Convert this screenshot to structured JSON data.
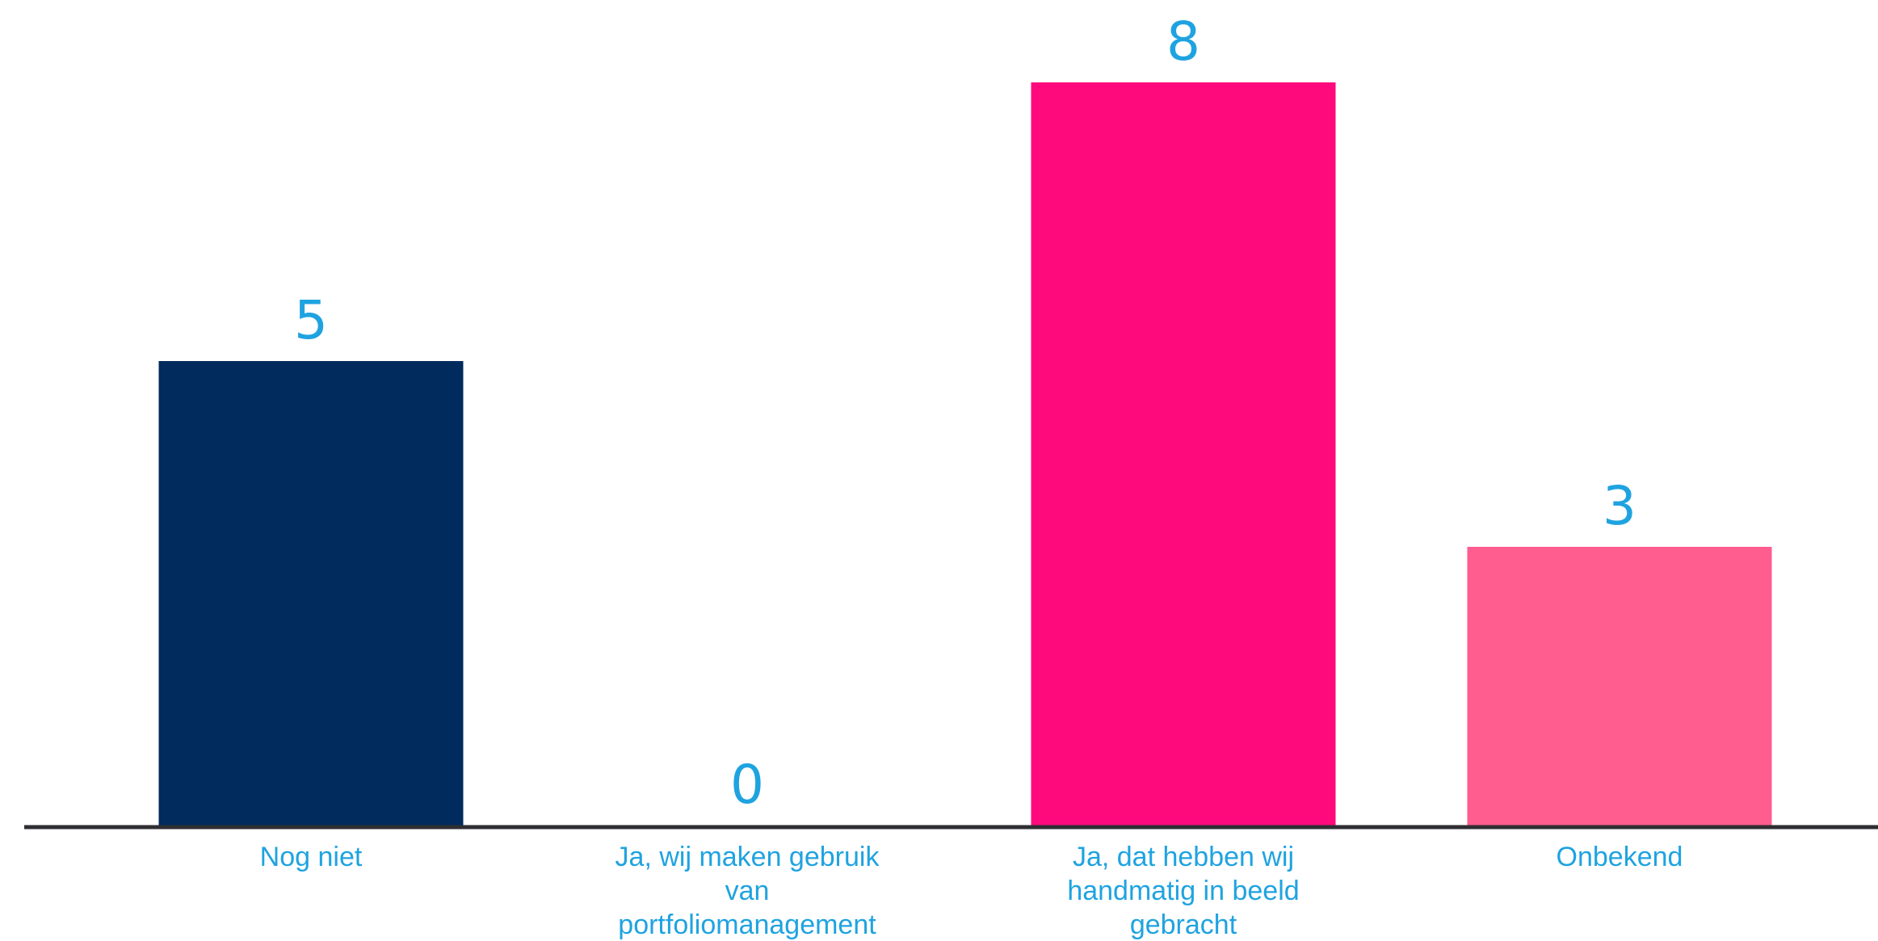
{
  "chart_data": {
    "type": "bar",
    "categories": [
      [
        "Nog niet"
      ],
      [
        "Ja, wij maken gebruik",
        "van",
        "portfoliomanagement"
      ],
      [
        "Ja, dat hebben wij",
        "handmatig in beeld",
        "gebracht"
      ],
      [
        "Onbekend"
      ]
    ],
    "values": [
      5,
      0,
      8,
      3
    ],
    "value_labels": [
      "5",
      "0",
      "8",
      "3"
    ],
    "bar_colors": [
      "#002b5c",
      "#ffffff",
      "#ff0a7d",
      "#ff5c8f"
    ],
    "label_color": "#1fa3e0",
    "axis_color": "#2e2e33",
    "title": "",
    "xlabel": "",
    "ylabel": "",
    "ylim": [
      0,
      8.3
    ],
    "grid": false,
    "legend": "none"
  }
}
